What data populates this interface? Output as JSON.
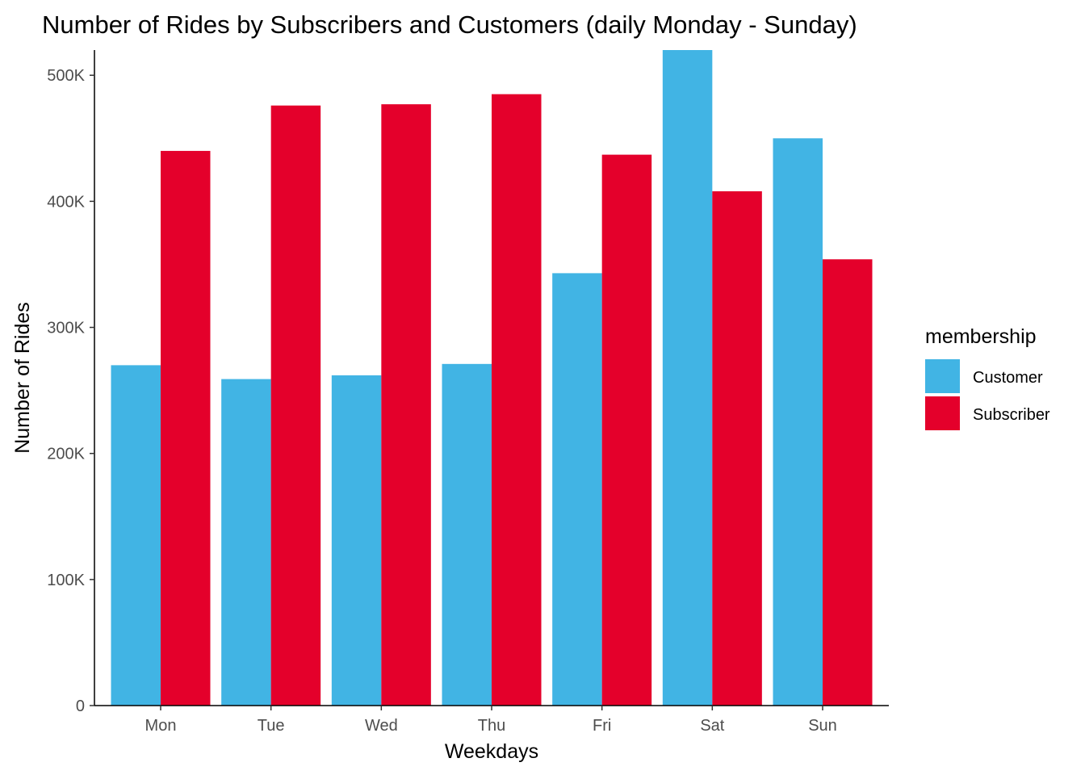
{
  "chart_data": {
    "type": "bar",
    "title": "Number of Rides by Subscribers and Customers (daily Monday - Sunday)",
    "xlabel": "Weekdays",
    "ylabel": "Number of Rides",
    "categories": [
      "Mon",
      "Tue",
      "Wed",
      "Thu",
      "Fri",
      "Sat",
      "Sun"
    ],
    "series": [
      {
        "name": "Customer",
        "color": "#41B4E4",
        "values": [
          270000,
          259000,
          262000,
          271000,
          343000,
          520000,
          450000
        ]
      },
      {
        "name": "Subscriber",
        "color": "#E4002B",
        "values": [
          440000,
          476000,
          477000,
          485000,
          437000,
          408000,
          354000
        ]
      }
    ],
    "ylim": [
      0,
      520000
    ],
    "yticks": [
      0,
      100000,
      200000,
      300000,
      400000,
      500000
    ],
    "ytick_labels": [
      "0",
      "100K",
      "200K",
      "300K",
      "400K",
      "500K"
    ],
    "grid": false,
    "legend": {
      "title": "membership",
      "position": "right"
    }
  }
}
